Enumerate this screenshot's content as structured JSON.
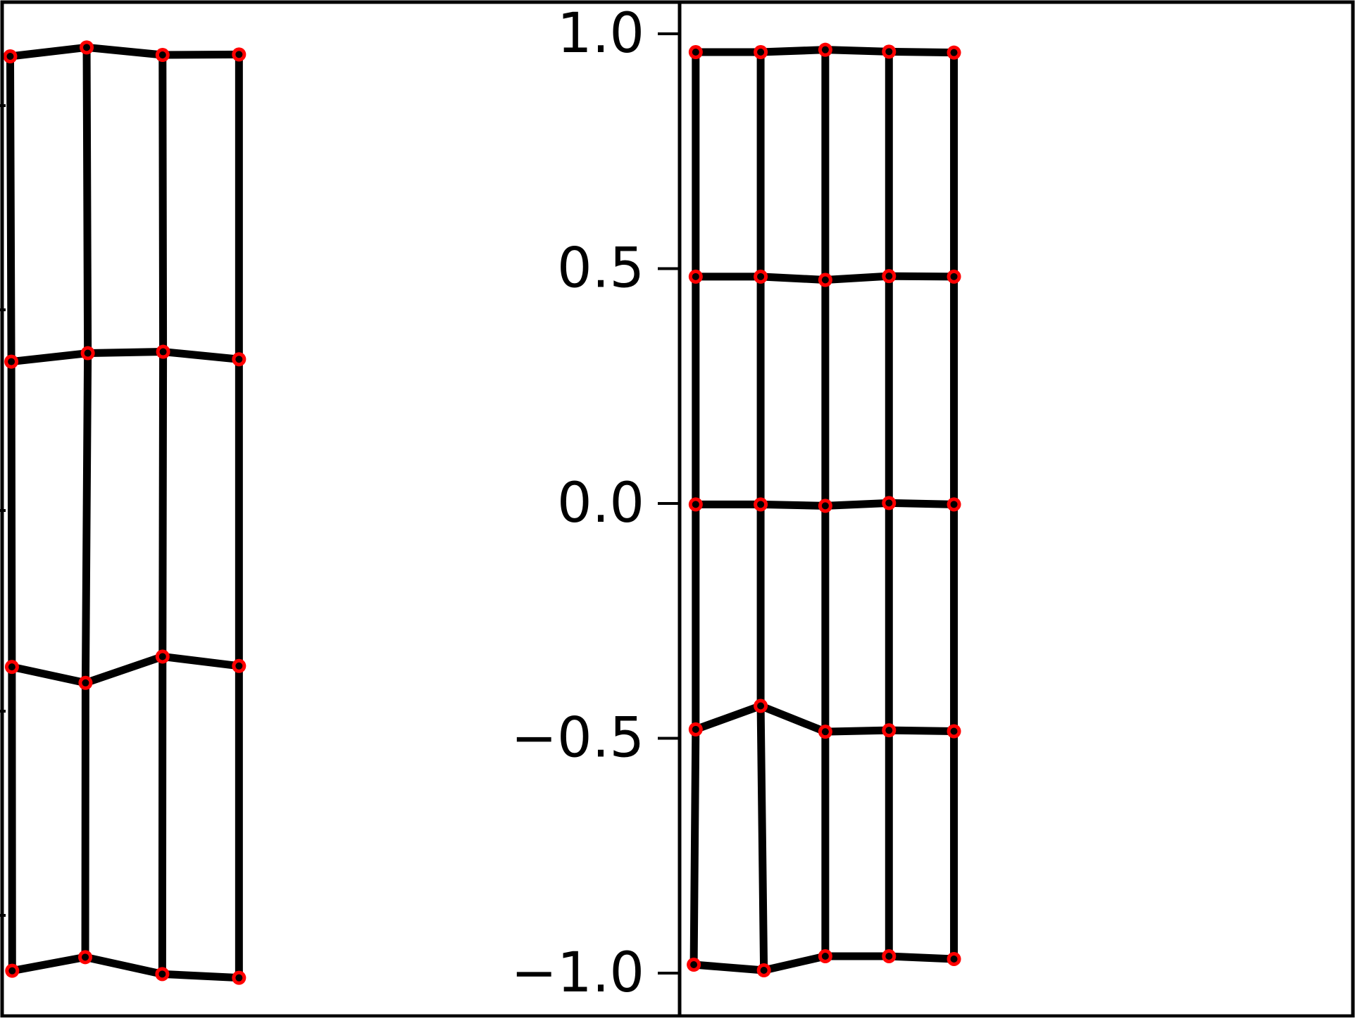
{
  "chart_data": [
    {
      "type": "mesh",
      "panel": "left",
      "xlim": [
        -1.4,
        1.0
      ],
      "ylim": [
        -1.08,
        1.07
      ],
      "rows": [
        [
          [
            -1.364,
            0.952
          ],
          [
            -1.094,
            0.971
          ],
          [
            -0.826,
            0.955
          ],
          [
            -0.556,
            0.956
          ]
        ],
        [
          [
            -1.36,
            0.302
          ],
          [
            -1.09,
            0.32
          ],
          [
            -0.824,
            0.323
          ],
          [
            -0.556,
            0.307
          ]
        ],
        [
          [
            -1.358,
            -0.348
          ],
          [
            -1.098,
            -0.382
          ],
          [
            -0.826,
            -0.326
          ],
          [
            -0.556,
            -0.346
          ]
        ],
        [
          [
            -1.357,
            -0.995
          ],
          [
            -1.099,
            -0.966
          ],
          [
            -0.827,
            -1.002
          ],
          [
            -0.556,
            -1.01
          ]
        ]
      ],
      "ytick_labels": [
        "1.0",
        "0.5",
        "0.0",
        "−0.5",
        "−1.0"
      ],
      "ytick_values": [
        1.0,
        0.5,
        0.0,
        -0.5,
        -1.0
      ],
      "grid": false
    },
    {
      "type": "mesh",
      "panel": "right",
      "xlim": [
        -1.0,
        1.1
      ],
      "ylim": [
        -1.08,
        1.07
      ],
      "rows": [
        [
          [
            -0.95,
            0.961
          ],
          [
            -0.748,
            0.961
          ],
          [
            -0.547,
            0.966
          ],
          [
            -0.349,
            0.962
          ],
          [
            -0.147,
            0.96
          ]
        ],
        [
          [
            -0.95,
            0.483
          ],
          [
            -0.748,
            0.483
          ],
          [
            -0.547,
            0.476
          ],
          [
            -0.349,
            0.484
          ],
          [
            -0.147,
            0.483
          ]
        ],
        [
          [
            -0.95,
            -0.002
          ],
          [
            -0.748,
            -0.002
          ],
          [
            -0.547,
            -0.005
          ],
          [
            -0.349,
            0.001
          ],
          [
            -0.147,
            -0.002
          ]
        ],
        [
          [
            -0.95,
            -0.481
          ],
          [
            -0.748,
            -0.431
          ],
          [
            -0.547,
            -0.486
          ],
          [
            -0.349,
            -0.483
          ],
          [
            -0.147,
            -0.485
          ]
        ],
        [
          [
            -0.956,
            -0.982
          ],
          [
            -0.738,
            -0.994
          ],
          [
            -0.547,
            -0.964
          ],
          [
            -0.349,
            -0.964
          ],
          [
            -0.147,
            -0.97
          ]
        ]
      ],
      "grid": false
    }
  ]
}
